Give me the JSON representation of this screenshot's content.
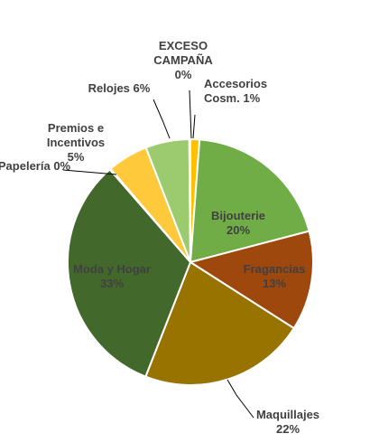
{
  "chart_data": {
    "type": "pie",
    "title": "",
    "slices": [
      {
        "label": "Accesorios Cosm.",
        "value_label": "1%",
        "value": 1.2,
        "color": "#FFC000"
      },
      {
        "label": "Bijouterie",
        "value_label": "20%",
        "value": 19.9,
        "color": "#70AD47"
      },
      {
        "label": "Fragancias",
        "value_label": "13%",
        "value": 13.2,
        "color": "#9E480E"
      },
      {
        "label": "Maquillajes",
        "value_label": "22%",
        "value": 22.1,
        "color": "#997300"
      },
      {
        "label": "Moda y Hogar",
        "value_label": "33%",
        "value": 32.9,
        "color": "#43682B"
      },
      {
        "label": "Papelería",
        "value_label": "0%",
        "value": 0.15,
        "color": "#264478"
      },
      {
        "label": "Premios e Incentivos",
        "value_label": "5%",
        "value": 5.4,
        "color": "#FFC93C"
      },
      {
        "label": "Relojes",
        "value_label": "6%",
        "value": 5.8,
        "color": "#9BCB6E"
      },
      {
        "label": "EXCESO CAMPAÑA",
        "value_label": "0%",
        "value": 0.15,
        "color": "#F4B183"
      }
    ],
    "labels": [
      {
        "lines": [
          "Accesorios",
          "Cosm. 1%"
        ],
        "color": "#404040"
      },
      {
        "lines": [
          "Bijouterie",
          "20%"
        ],
        "color": "#404040"
      },
      {
        "lines": [
          "Fragancias",
          "13%"
        ],
        "color": "#404040"
      },
      {
        "lines": [
          "Maquillajes",
          "22%"
        ],
        "color": "#404040"
      },
      {
        "lines": [
          "Moda y Hogar",
          "33%"
        ],
        "color": "#404040"
      },
      {
        "lines": [
          "Papelería 0%"
        ],
        "color": "#404040"
      },
      {
        "lines": [
          "Premios e",
          "Incentivos",
          "5%"
        ],
        "color": "#404040"
      },
      {
        "lines": [
          "Relojes 6%"
        ],
        "color": "#404040"
      },
      {
        "lines": [
          "EXCESO",
          "CAMPAÑA",
          "0%"
        ],
        "color": "#404040"
      }
    ]
  }
}
